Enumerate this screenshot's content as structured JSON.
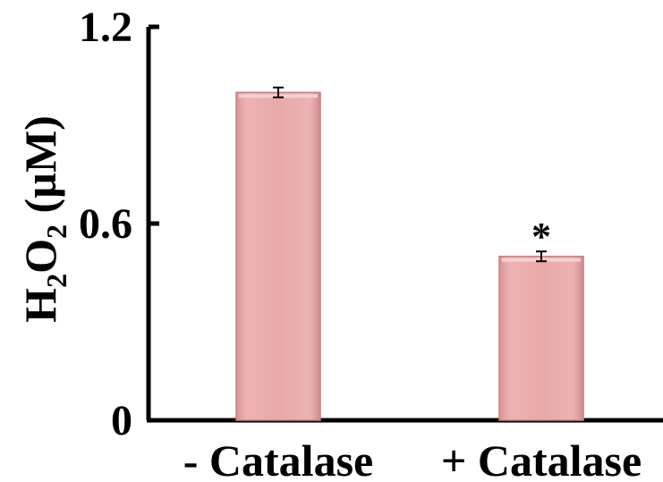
{
  "chart_data": {
    "type": "bar",
    "categories": [
      "- Catalase",
      "+ Catalase"
    ],
    "values": [
      1.0,
      0.5
    ],
    "errors": [
      0.015,
      0.015
    ],
    "annotations": [
      "",
      "*"
    ],
    "ylabel": {
      "main": "H",
      "sub1": "2",
      "mid": "O",
      "sub2": "2",
      "unit": " (µM)"
    },
    "ylim": [
      0,
      1.2
    ],
    "yticks": [
      0,
      0.6,
      1.2
    ],
    "ytick_labels": [
      "0",
      "0.6",
      "1.2"
    ],
    "grid": false,
    "bar_color": "#e8a8a8",
    "bar_edge_color": "#c48080"
  }
}
